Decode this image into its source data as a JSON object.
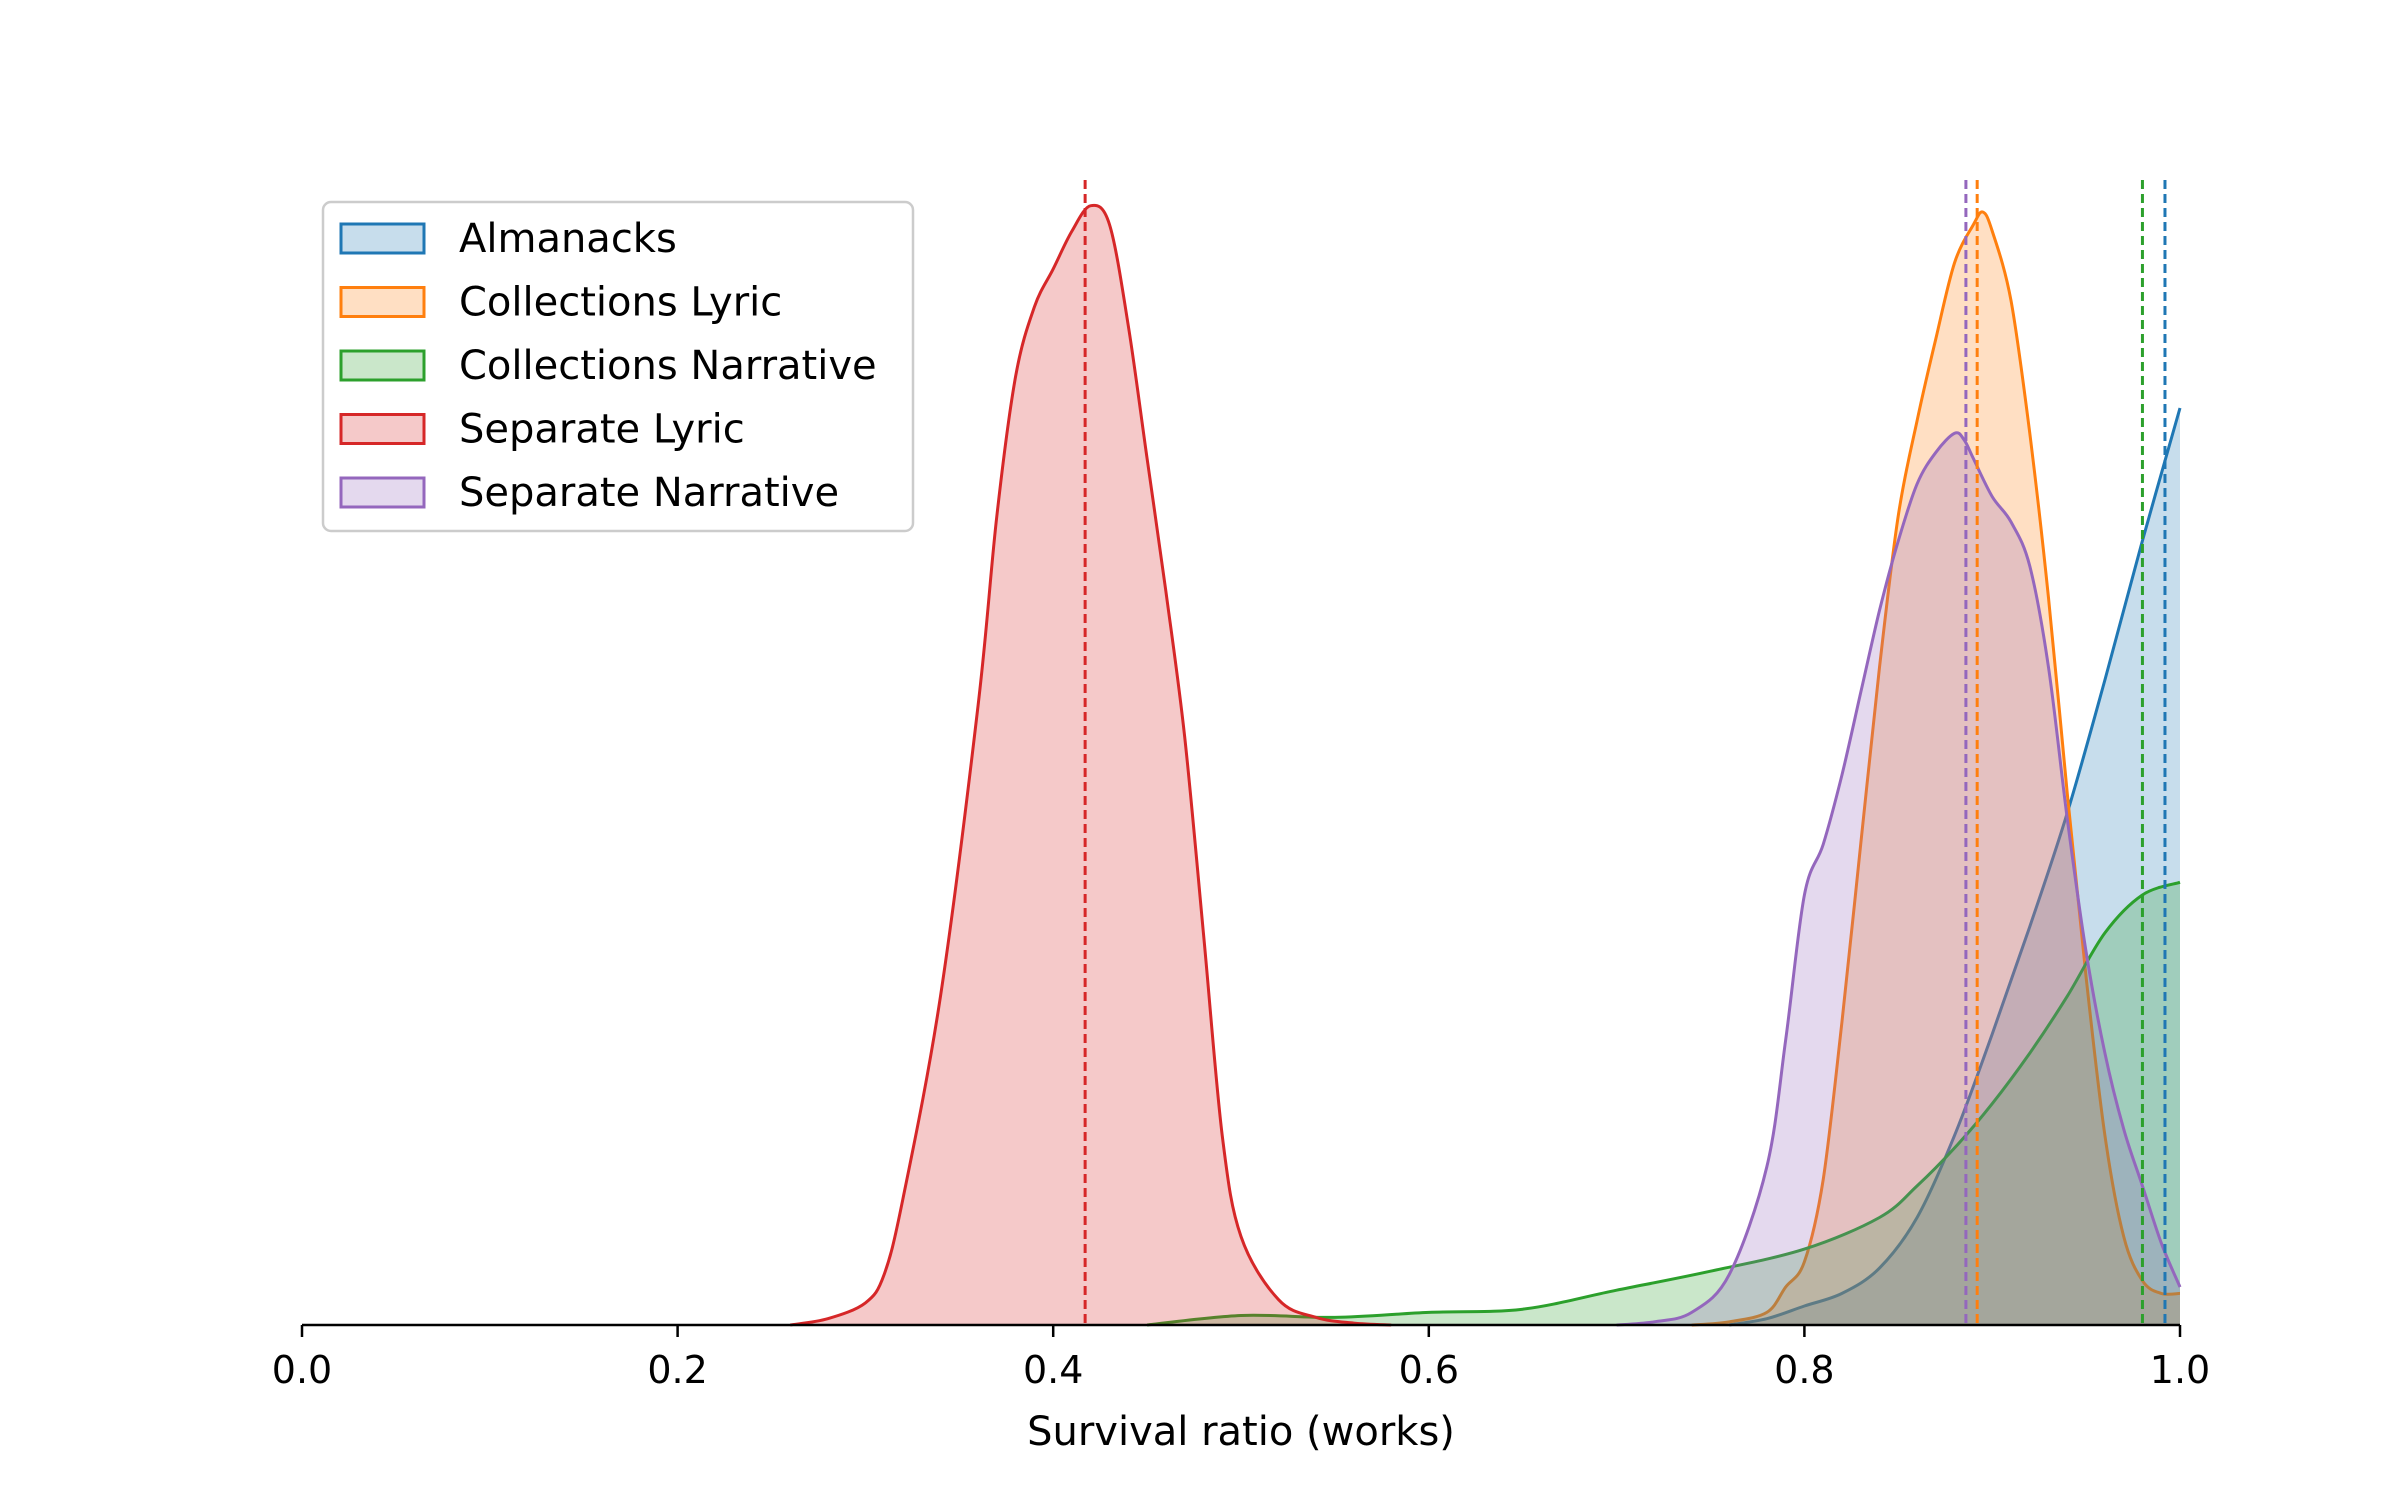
{
  "chart_data": {
    "type": "area",
    "chart_kind": "kernel density plot with mean lines",
    "title": "",
    "xlabel": "Survival ratio (works)",
    "ylabel": "",
    "xlim": [
      0.0,
      1.0
    ],
    "ylim": [
      0,
      17.6
    ],
    "y_axis_visible": false,
    "grid": false,
    "x_ticks": [
      "0.0",
      "0.2",
      "0.4",
      "0.6",
      "0.8",
      "1.0"
    ],
    "legend_position": "top-left",
    "series": [
      {
        "name": "Almanacks",
        "color": "#1f77b4",
        "mean": 0.992,
        "x": [
          0.76,
          0.78,
          0.8,
          0.82,
          0.84,
          0.86,
          0.88,
          0.9,
          0.92,
          0.94,
          0.96,
          0.98,
          1.0
        ],
        "y": [
          0.0,
          0.1,
          0.3,
          0.5,
          0.9,
          1.7,
          3.0,
          4.6,
          6.3,
          8.1,
          10.2,
          12.4,
          14.5
        ]
      },
      {
        "name": "Collections Lyric",
        "color": "#ff7f0e",
        "mean": 0.892,
        "x": [
          0.74,
          0.76,
          0.78,
          0.79,
          0.8,
          0.81,
          0.82,
          0.83,
          0.84,
          0.85,
          0.86,
          0.87,
          0.88,
          0.89,
          0.895,
          0.9,
          0.91,
          0.92,
          0.93,
          0.94,
          0.95,
          0.96,
          0.97,
          0.98,
          0.99,
          1.0
        ],
        "y": [
          0.0,
          0.05,
          0.2,
          0.6,
          1.0,
          2.3,
          4.8,
          7.6,
          10.4,
          12.8,
          14.3,
          15.6,
          16.8,
          17.4,
          17.6,
          17.3,
          16.2,
          14.1,
          11.5,
          8.4,
          5.5,
          3.0,
          1.4,
          0.7,
          0.5,
          0.5
        ]
      },
      {
        "name": "Collections Narrative",
        "color": "#2ca02c",
        "mean": 0.98,
        "x": [
          0.45,
          0.5,
          0.55,
          0.6,
          0.65,
          0.7,
          0.75,
          0.8,
          0.84,
          0.86,
          0.88,
          0.9,
          0.92,
          0.94,
          0.96,
          0.98,
          1.0
        ],
        "y": [
          0.0,
          0.15,
          0.12,
          0.2,
          0.25,
          0.55,
          0.85,
          1.2,
          1.7,
          2.2,
          2.8,
          3.5,
          4.3,
          5.2,
          6.2,
          6.8,
          7.0
        ]
      },
      {
        "name": "Separate Lyric",
        "color": "#d62728",
        "mean": 0.417,
        "x": [
          0.26,
          0.28,
          0.3,
          0.31,
          0.32,
          0.34,
          0.36,
          0.37,
          0.38,
          0.39,
          0.4,
          0.41,
          0.42,
          0.43,
          0.44,
          0.45,
          0.46,
          0.47,
          0.48,
          0.49,
          0.5,
          0.52,
          0.54,
          0.56,
          0.58
        ],
        "y": [
          0.0,
          0.1,
          0.35,
          0.8,
          2.0,
          5.2,
          9.8,
          12.8,
          15.0,
          16.1,
          16.7,
          17.3,
          17.7,
          17.4,
          15.8,
          13.7,
          11.6,
          9.3,
          6.2,
          3.0,
          1.4,
          0.4,
          0.12,
          0.03,
          0.0
        ]
      },
      {
        "name": "Separate Narrative",
        "color": "#9467bd",
        "mean": 0.886,
        "x": [
          0.7,
          0.72,
          0.74,
          0.76,
          0.78,
          0.79,
          0.8,
          0.81,
          0.82,
          0.83,
          0.84,
          0.85,
          0.86,
          0.87,
          0.88,
          0.885,
          0.89,
          0.9,
          0.91,
          0.92,
          0.93,
          0.94,
          0.95,
          0.96,
          0.97,
          0.98,
          0.99,
          1.0
        ],
        "y": [
          0.0,
          0.05,
          0.2,
          0.8,
          2.5,
          4.5,
          6.8,
          7.6,
          8.7,
          10.0,
          11.3,
          12.4,
          13.3,
          13.8,
          14.1,
          14.0,
          13.7,
          13.1,
          12.7,
          12.0,
          10.4,
          8.0,
          5.9,
          4.3,
          3.1,
          2.2,
          1.3,
          0.6
        ]
      }
    ]
  }
}
